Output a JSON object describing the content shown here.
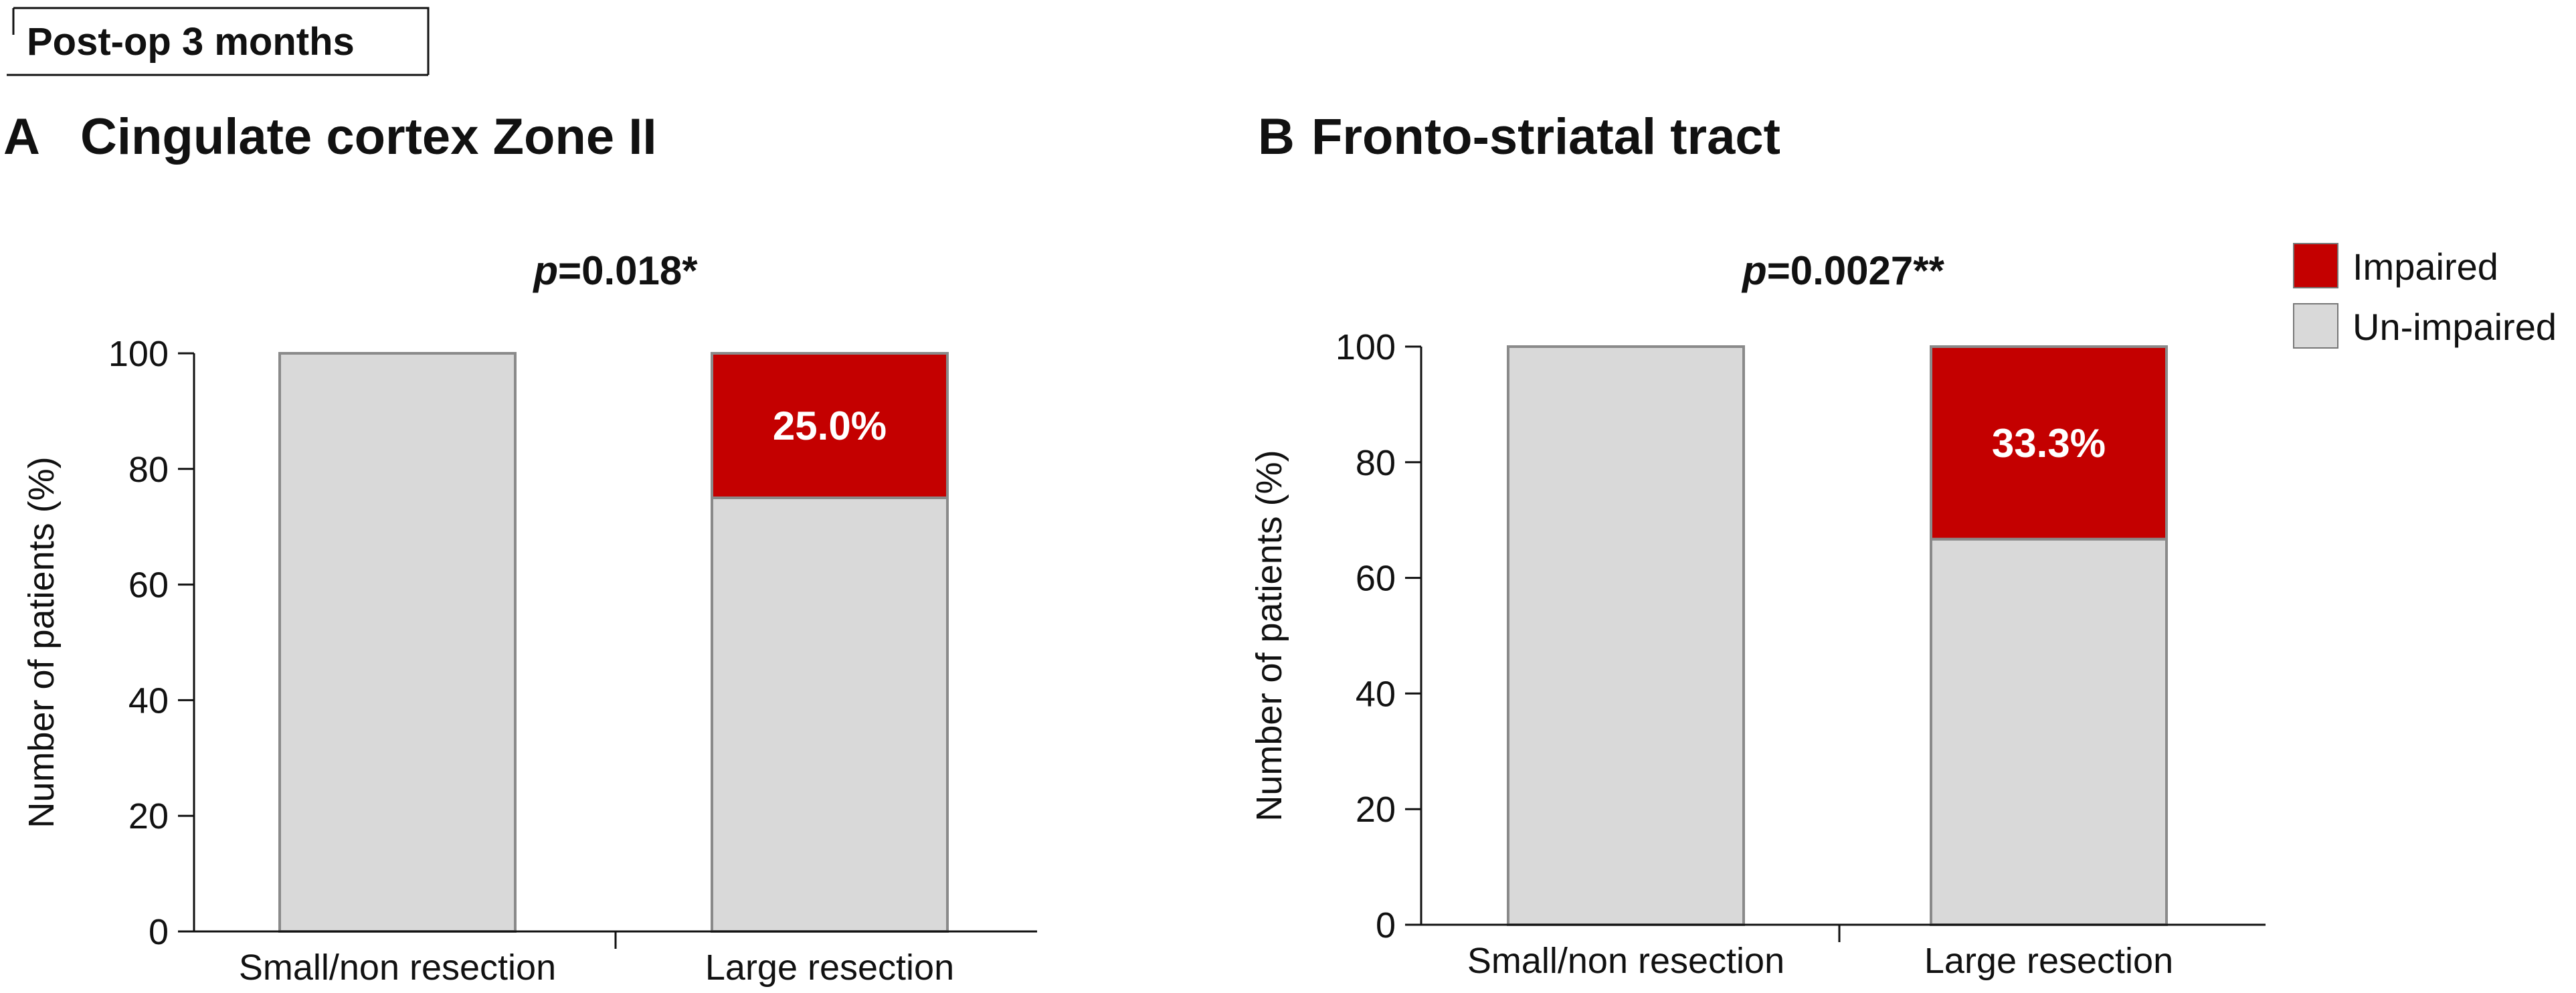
{
  "header": {
    "label": "Post-op 3 months"
  },
  "legend": {
    "position": "top-right",
    "items": [
      {
        "label": "Impaired",
        "color": "#c40000"
      },
      {
        "label": "Un-impaired",
        "color": "#d9d9d9"
      }
    ]
  },
  "chart_data": [
    {
      "type": "bar",
      "stacked": true,
      "panel": "A",
      "title": "Cingulate cortex Zone II",
      "p_prefix": "p",
      "p_value": "=0.018*",
      "ylabel": "Number of patients (%)",
      "xlabel": "",
      "ylim": [
        0,
        100
      ],
      "yticks": [
        0,
        20,
        40,
        60,
        80,
        100
      ],
      "categories": [
        "Small/non resection",
        "Large resection"
      ],
      "series": [
        {
          "name": "Un-impaired",
          "color": "#d9d9d9",
          "values": [
            100,
            75.0
          ]
        },
        {
          "name": "Impaired",
          "color": "#c40000",
          "values": [
            0,
            25.0
          ]
        }
      ],
      "data_labels": [
        "",
        "25.0%"
      ]
    },
    {
      "type": "bar",
      "stacked": true,
      "panel": "B",
      "title": "Fronto-striatal tract",
      "p_prefix": "p",
      "p_value": "=0.0027**",
      "ylabel": "Number of patients (%)",
      "xlabel": "",
      "ylim": [
        0,
        100
      ],
      "yticks": [
        0,
        20,
        40,
        60,
        80,
        100
      ],
      "categories": [
        "Small/non resection",
        "Large resection"
      ],
      "series": [
        {
          "name": "Un-impaired",
          "color": "#d9d9d9",
          "values": [
            100,
            66.7
          ]
        },
        {
          "name": "Impaired",
          "color": "#c40000",
          "values": [
            0,
            33.3
          ]
        }
      ],
      "data_labels": [
        "",
        "33.3%"
      ]
    }
  ]
}
